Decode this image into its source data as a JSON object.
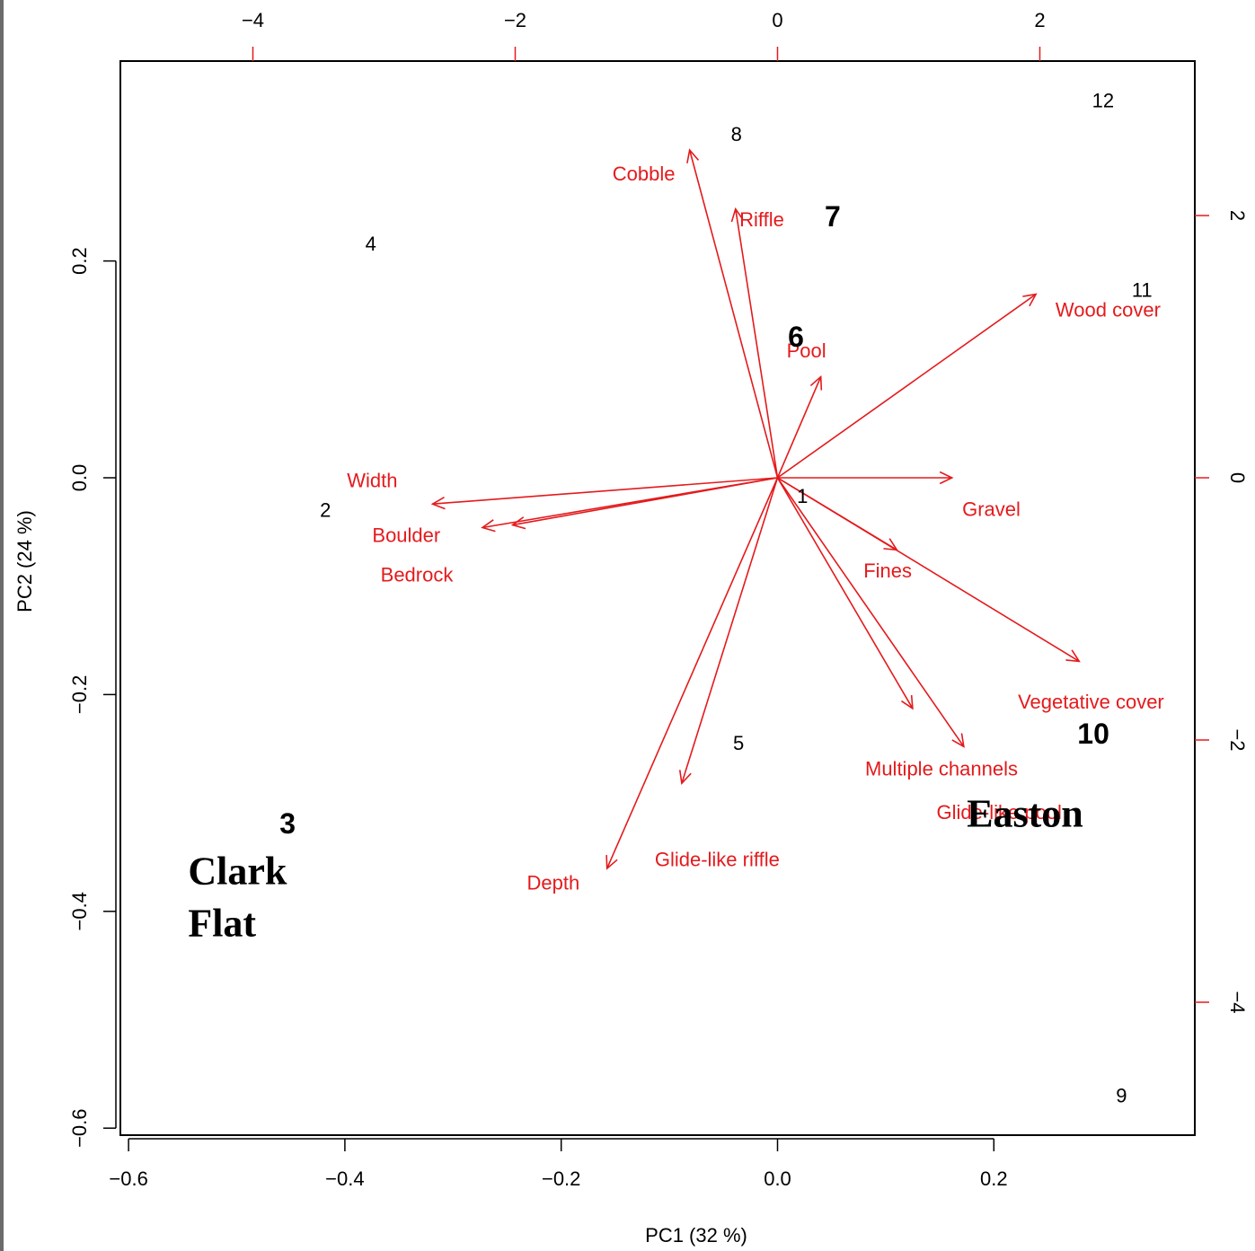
{
  "chart_data": {
    "type": "scatter",
    "subtype": "pca-biplot",
    "xlabel": "PC1 (32 %)",
    "ylabel": "PC2 (24 %)",
    "xlim": [
      -0.6,
      0.36
    ],
    "ylim": [
      -0.6,
      0.385
    ],
    "xticks": [
      -0.6,
      -0.4,
      -0.2,
      0.0,
      0.2
    ],
    "xtick_labels": [
      "−0.6",
      "−0.4",
      "−0.2",
      "0.0",
      "0.2"
    ],
    "yticks": [
      -0.6,
      -0.4,
      -0.2,
      0.0,
      0.2
    ],
    "ytick_labels": [
      "−0.6",
      "−0.4",
      "−0.2",
      "0.0",
      "0.2"
    ],
    "top_axis": {
      "ticks": [
        -4,
        -2,
        0,
        2
      ],
      "tick_labels": [
        "−4",
        "−2",
        "0",
        "2"
      ],
      "color": "#e41a1c"
    },
    "right_axis": {
      "ticks": [
        -4,
        -2,
        0,
        2
      ],
      "tick_labels": [
        "−4",
        "−2",
        "0",
        "2"
      ],
      "color": "#e41a1c"
    },
    "grid": false,
    "observations": [
      {
        "label": "1",
        "x": 0.023,
        "y": -0.017,
        "bold": false
      },
      {
        "label": "2",
        "x": -0.418,
        "y": -0.03,
        "bold": false
      },
      {
        "label": "3",
        "x": -0.453,
        "y": -0.319,
        "bold": true
      },
      {
        "label": "4",
        "x": -0.376,
        "y": 0.216,
        "bold": false
      },
      {
        "label": "5",
        "x": -0.036,
        "y": -0.245,
        "bold": false
      },
      {
        "label": "6",
        "x": 0.017,
        "y": 0.13,
        "bold": true
      },
      {
        "label": "7",
        "x": 0.051,
        "y": 0.241,
        "bold": true
      },
      {
        "label": "8",
        "x": -0.038,
        "y": 0.317,
        "bold": false
      },
      {
        "label": "9",
        "x": 0.318,
        "y": -0.57,
        "bold": false
      },
      {
        "label": "10",
        "x": 0.292,
        "y": -0.236,
        "bold": true
      },
      {
        "label": "11",
        "x": 0.337,
        "y": 0.173,
        "bold": false
      },
      {
        "label": "12",
        "x": 0.301,
        "y": 0.348,
        "bold": false
      }
    ],
    "loadings": [
      {
        "name": "Cobble",
        "x": -0.67,
        "y": 2.5,
        "label_x": -1.02,
        "label_y": 2.32
      },
      {
        "name": "Riffle",
        "x": -0.32,
        "y": 2.05,
        "label_x": -0.12,
        "label_y": 1.97
      },
      {
        "name": "Pool",
        "x": 0.33,
        "y": 0.77,
        "label_x": 0.22,
        "label_y": 0.97
      },
      {
        "name": "Wood cover",
        "x": 1.97,
        "y": 1.4,
        "label_x": 2.52,
        "label_y": 1.28
      },
      {
        "name": "Width",
        "x": -2.63,
        "y": -0.2,
        "label_x": -3.09,
        "label_y": -0.02
      },
      {
        "name": "Boulder",
        "x": -2.25,
        "y": -0.38,
        "label_x": -2.83,
        "label_y": -0.44
      },
      {
        "name": "Bedrock",
        "x": -2.02,
        "y": -0.36,
        "label_x": -2.75,
        "label_y": -0.74
      },
      {
        "name": "Gravel",
        "x": 1.33,
        "y": 0.0,
        "label_x": 1.63,
        "label_y": -0.24
      },
      {
        "name": "Fines",
        "x": 0.91,
        "y": -0.55,
        "label_x": 0.84,
        "label_y": -0.71
      },
      {
        "name": "Vegetative cover",
        "x": 2.3,
        "y": -1.4,
        "label_x": 2.39,
        "label_y": -1.71
      },
      {
        "name": "Multiple channels",
        "x": 1.42,
        "y": -2.05,
        "label_x": 1.25,
        "label_y": -2.22
      },
      {
        "name": "Glide-like pool",
        "x": 1.03,
        "y": -1.76,
        "label_x": 1.69,
        "label_y": -2.55
      },
      {
        "name": "Glide-like riffle",
        "x": -0.73,
        "y": -2.33,
        "label_x": -0.46,
        "label_y": -2.91
      },
      {
        "name": "Depth",
        "x": -1.3,
        "y": -2.98,
        "label_x": -1.71,
        "label_y": -3.09
      }
    ],
    "annotations": [
      {
        "text_lines": [
          "Clark",
          "Flat"
        ],
        "x": -0.545,
        "y": -0.375
      },
      {
        "text_lines": [
          "Easton"
        ],
        "x": 0.175,
        "y": -0.322
      }
    ],
    "colors": {
      "points": "#000000",
      "loadings": "#e41a1c"
    }
  }
}
